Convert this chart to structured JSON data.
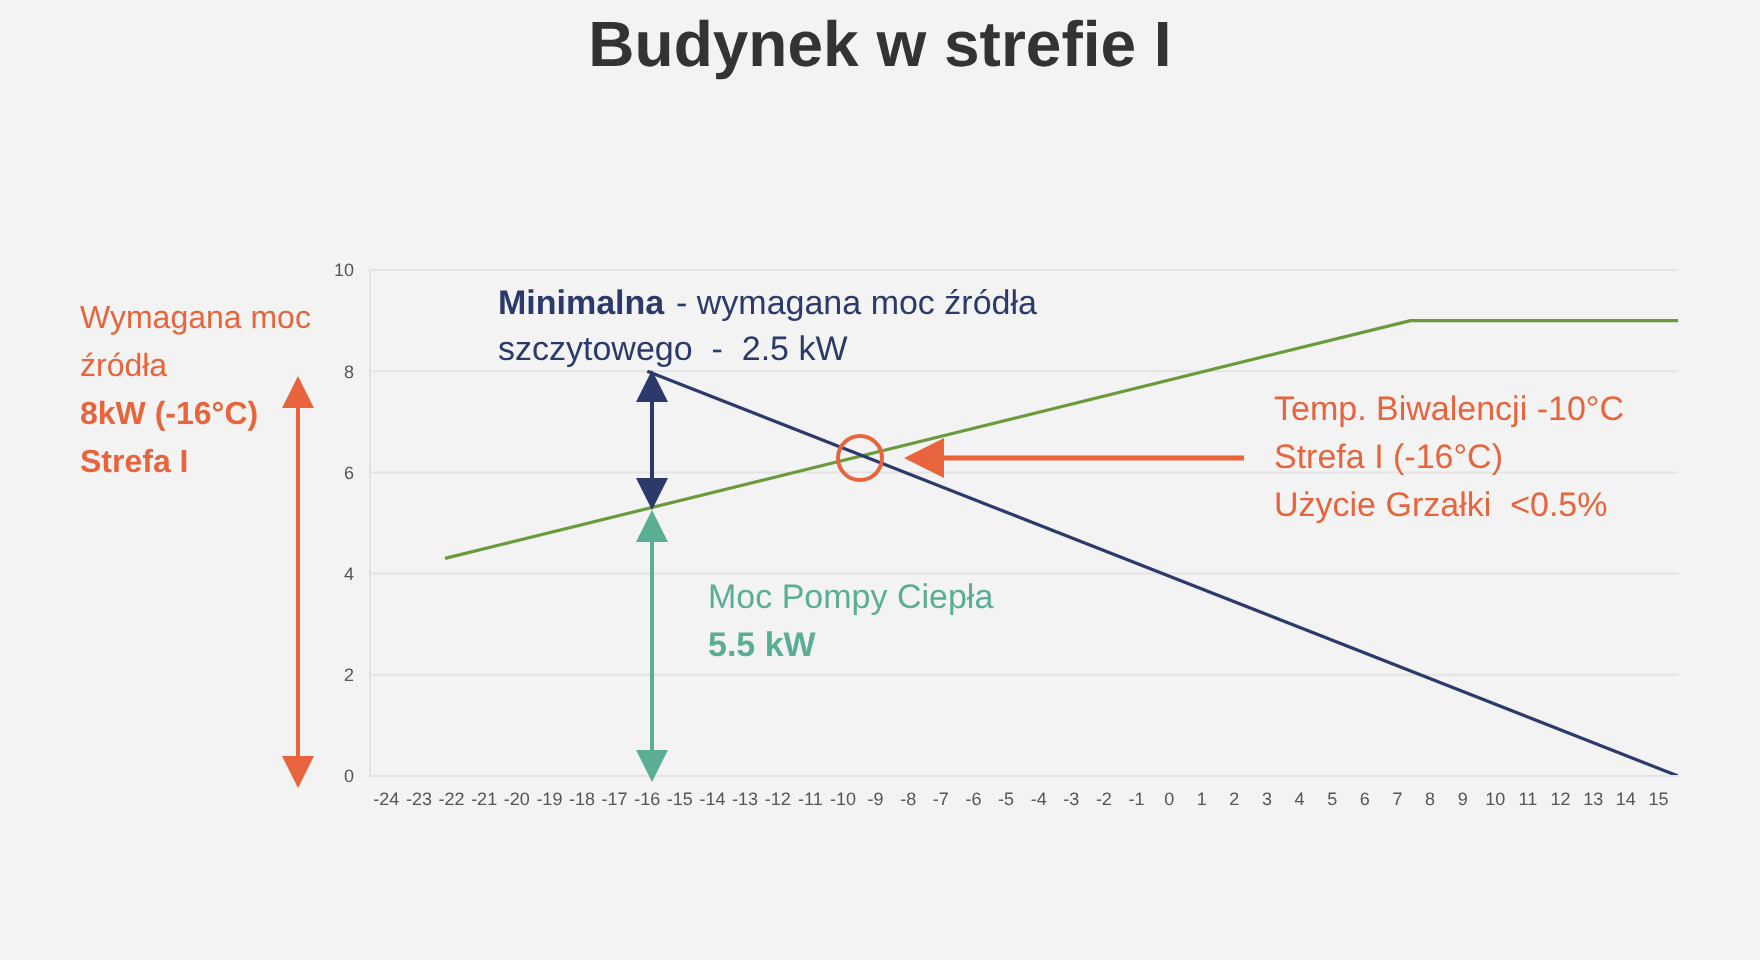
{
  "chart_data": {
    "type": "line",
    "title": "Budynek w strefie I",
    "series": [
      {
        "color": "#6a9a3a",
        "x": [
          -22.2,
          7.4,
          15.6
        ],
        "values": [
          4.3,
          9,
          9
        ]
      },
      {
        "color": "#2b3a6b",
        "x": [
          -16,
          15.6
        ],
        "values": [
          8,
          0
        ]
      }
    ],
    "xlim": [
      -24.5,
      15.6
    ],
    "xticks": [
      -24,
      -23,
      -22,
      -21,
      -20,
      -19,
      -18,
      -17,
      -16,
      -15,
      -14,
      -13,
      -12,
      -11,
      -10,
      -9,
      -8,
      -7,
      -6,
      -5,
      -4,
      -3,
      -2,
      -1,
      0,
      1,
      2,
      3,
      4,
      5,
      6,
      7,
      8,
      9,
      10,
      11,
      12,
      13,
      14,
      15
    ],
    "ylim": [
      0,
      10
    ],
    "yticks": [
      0,
      2,
      4,
      6,
      8,
      10
    ],
    "grid": "y",
    "marker": "none",
    "line_style": "solid",
    "annotations": [
      "Wymagana moc źródła",
      "8kW (-16°C)",
      "Strefa I",
      "Minimalna",
      "- wymagana moc źródła",
      "szczytowego  -  2.5 kW",
      "Temp. Biwalencji -10°C",
      "Strefa I (-16°C)",
      "Użycie Grzałki  <0.5%",
      "Moc Pompy Ciepła",
      "5.5 kW"
    ]
  }
}
